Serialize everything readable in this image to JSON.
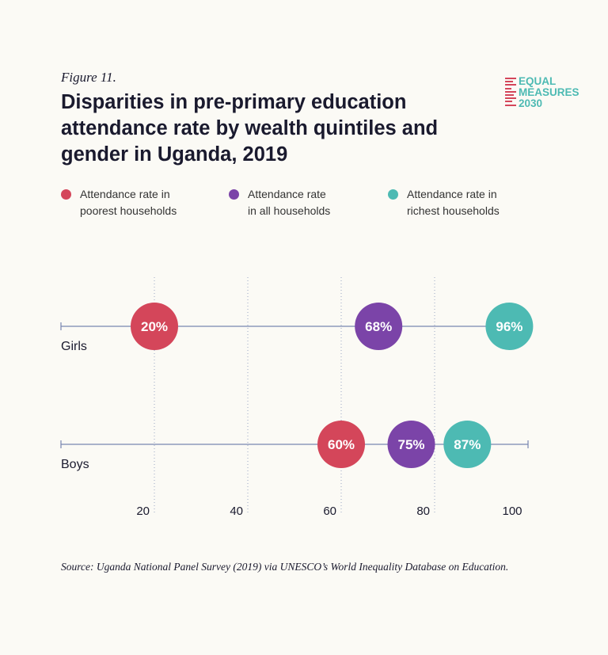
{
  "figure_label": "Figure 11.",
  "logo": {
    "lines": [
      "EQUAL",
      "MEASURES",
      "2030"
    ]
  },
  "legend": [
    {
      "line1": "Attendance rate in",
      "line2": "poorest households",
      "color": "#d4465a"
    },
    {
      "line1": "Attendance rate",
      "line2": "in all households",
      "color": "#7b44a8"
    },
    {
      "line1": "Attendance rate in",
      "line2": "richest households",
      "color": "#4dbab3"
    }
  ],
  "source": "Source: Uganda National Panel Survey (2019) via UNESCO’s World Inequality Database on Education.",
  "chart_data": {
    "type": "dot",
    "title": "Disparities in pre-primary education attendance rate by wealth quintiles and gender in Uganda, 2019",
    "categories": [
      "Girls",
      "Boys"
    ],
    "series": [
      {
        "name": "Attendance rate in poorest households",
        "color": "#d4465a",
        "values": [
          20,
          60
        ]
      },
      {
        "name": "Attendance rate in all households",
        "color": "#7b44a8",
        "values": [
          68,
          75
        ]
      },
      {
        "name": "Attendance rate in richest households",
        "color": "#4dbab3",
        "values": [
          96,
          87
        ]
      }
    ],
    "xlim": [
      0,
      100
    ],
    "xticks": [
      20,
      40,
      60,
      80,
      100
    ],
    "gridlines": [
      20,
      40,
      60,
      80
    ],
    "value_suffix": "%",
    "legend_position": "top"
  }
}
